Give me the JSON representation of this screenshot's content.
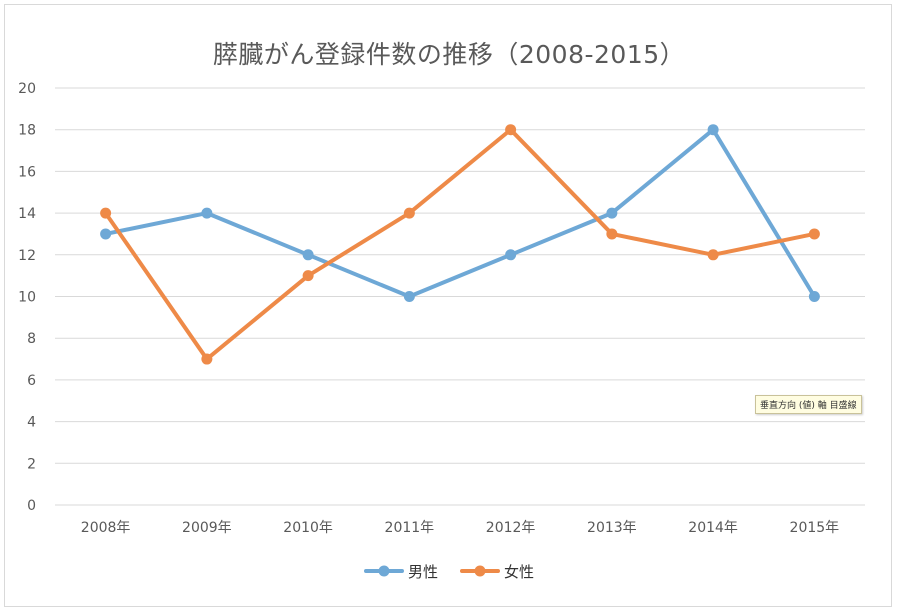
{
  "chart_data": {
    "type": "line",
    "title": "膵臓がん登録件数の推移（2008-2015）",
    "categories": [
      "2008年",
      "2009年",
      "2010年",
      "2011年",
      "2012年",
      "2013年",
      "2014年",
      "2015年"
    ],
    "series": [
      {
        "name": "男性",
        "color": "#6ea8d6",
        "values": [
          13,
          14,
          12,
          10,
          12,
          14,
          18,
          10
        ]
      },
      {
        "name": "女性",
        "color": "#ee8a48",
        "values": [
          14,
          7,
          11,
          14,
          18,
          13,
          12,
          13
        ]
      }
    ],
    "ylim": [
      0,
      20
    ],
    "yticks": [
      0,
      2,
      4,
      6,
      8,
      10,
      12,
      14,
      16,
      18,
      20
    ],
    "grid": true,
    "legend": "bottom"
  },
  "tooltip": {
    "text": "垂直方向 (値) 軸 目盛線"
  }
}
